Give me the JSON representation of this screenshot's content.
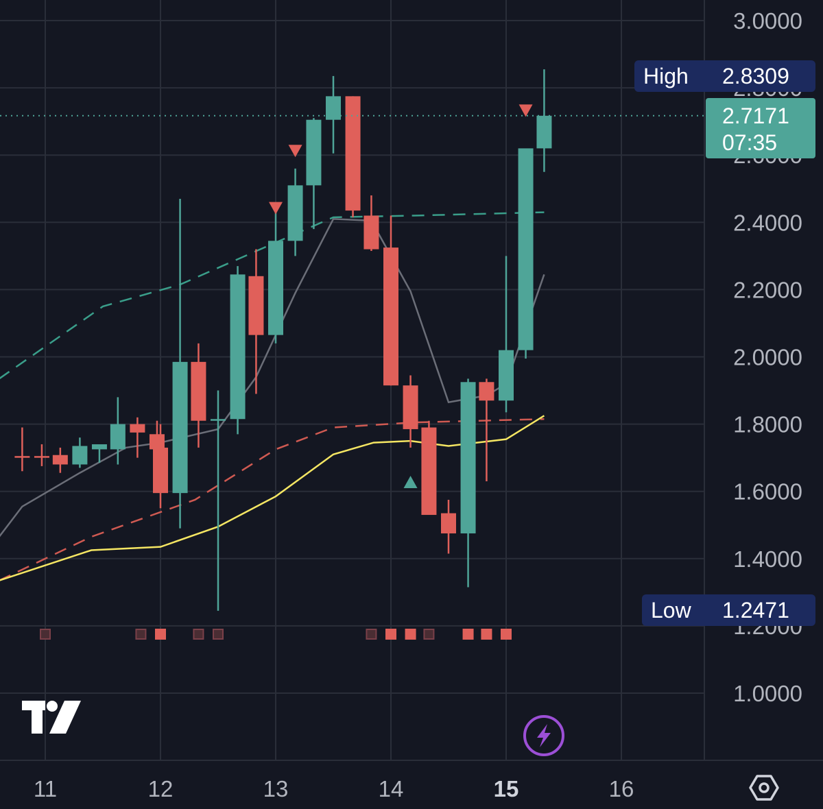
{
  "colors": {
    "background": "#141722",
    "grid": "#2a2e39",
    "up": "#4fa598",
    "down": "#e0605a",
    "sma_yellow": "#f5e663",
    "sma_gray": "#6b6e78",
    "upper_band": "#3a9e8a",
    "lower_band": "#d05a52",
    "tag_bg": "#1c2a5e",
    "price_tag_bg": "#4fa598",
    "lightning": "#9c4fd6"
  },
  "price_axis": {
    "ticks": [
      "3.0000",
      "2.4000",
      "2.2000",
      "2.0000",
      "1.8000",
      "1.6000",
      "1.4000",
      "1.0000"
    ],
    "tick_values": [
      3.0,
      2.4,
      2.2,
      2.0,
      1.8,
      1.6,
      1.4,
      1.0
    ],
    "partially_hidden_ticks": [
      "2.8000",
      "2.6000",
      "1.2000"
    ],
    "partially_hidden_values": [
      2.8,
      2.6,
      1.2
    ]
  },
  "time_axis": {
    "ticks": [
      "11",
      "12",
      "13",
      "14",
      "15",
      "16"
    ],
    "bold_tick": "15"
  },
  "high_tag": {
    "label": "High",
    "value": "2.8309",
    "price": 2.8309
  },
  "low_tag": {
    "label": "Low",
    "value": "1.2471",
    "price": 1.2471
  },
  "last_price_tag": {
    "value": "2.7171",
    "countdown": "07:35",
    "price": 2.7171
  },
  "logo": "tradingview-logo",
  "settings_icon": "hexagon-settings-icon",
  "lightning_icon": "lightning-icon",
  "chart_data": {
    "type": "candlestick",
    "x_labels": [
      "11",
      "12",
      "13",
      "14",
      "15",
      "16"
    ],
    "ylim": [
      0.8,
      3.05
    ],
    "yscale": "linear",
    "grid": true,
    "candles": [
      {
        "t": 10.8,
        "o": 1.705,
        "h": 1.79,
        "l": 1.66,
        "c": 1.7
      },
      {
        "t": 10.97,
        "o": 1.705,
        "h": 1.74,
        "l": 1.675,
        "c": 1.7
      },
      {
        "t": 11.13,
        "o": 1.708,
        "h": 1.73,
        "l": 1.655,
        "c": 1.68
      },
      {
        "t": 11.3,
        "o": 1.68,
        "h": 1.76,
        "l": 1.67,
        "c": 1.735
      },
      {
        "t": 11.47,
        "o": 1.725,
        "h": 1.73,
        "l": 1.685,
        "c": 1.74
      },
      {
        "t": 11.63,
        "o": 1.725,
        "h": 1.88,
        "l": 1.68,
        "c": 1.8
      },
      {
        "t": 11.8,
        "o": 1.8,
        "h": 1.82,
        "l": 1.7,
        "c": 1.775
      },
      {
        "t": 11.97,
        "o": 1.77,
        "h": 1.81,
        "l": 1.71,
        "c": 1.725
      },
      {
        "t": 12.0,
        "o": 1.73,
        "h": 1.8,
        "l": 1.55,
        "c": 1.595
      },
      {
        "t": 12.17,
        "o": 1.595,
        "h": 2.47,
        "l": 1.49,
        "c": 1.985
      },
      {
        "t": 12.33,
        "o": 1.985,
        "h": 2.04,
        "l": 1.73,
        "c": 1.81
      },
      {
        "t": 12.5,
        "o": 1.815,
        "h": 1.9,
        "l": 1.245,
        "c": 1.815
      },
      {
        "t": 12.67,
        "o": 1.815,
        "h": 2.27,
        "l": 1.77,
        "c": 2.245
      },
      {
        "t": 12.83,
        "o": 2.24,
        "h": 2.32,
        "l": 1.89,
        "c": 2.065
      },
      {
        "t": 13.0,
        "o": 2.065,
        "h": 2.43,
        "l": 2.04,
        "c": 2.345
      },
      {
        "t": 13.17,
        "o": 2.345,
        "h": 2.56,
        "l": 2.3,
        "c": 2.51
      },
      {
        "t": 13.33,
        "o": 2.51,
        "h": 2.71,
        "l": 2.38,
        "c": 2.705
      },
      {
        "t": 13.5,
        "o": 2.705,
        "h": 2.835,
        "l": 2.605,
        "c": 2.775
      },
      {
        "t": 13.67,
        "o": 2.775,
        "h": 2.775,
        "l": 2.415,
        "c": 2.435
      },
      {
        "t": 13.83,
        "o": 2.42,
        "h": 2.48,
        "l": 2.315,
        "c": 2.32
      },
      {
        "t": 14.0,
        "o": 2.325,
        "h": 2.42,
        "l": 1.915,
        "c": 1.915
      },
      {
        "t": 14.17,
        "o": 1.915,
        "h": 1.945,
        "l": 1.73,
        "c": 1.785
      },
      {
        "t": 14.33,
        "o": 1.79,
        "h": 1.81,
        "l": 1.535,
        "c": 1.53
      },
      {
        "t": 14.5,
        "o": 1.535,
        "h": 1.575,
        "l": 1.415,
        "c": 1.475
      },
      {
        "t": 14.67,
        "o": 1.475,
        "h": 1.935,
        "l": 1.315,
        "c": 1.925
      },
      {
        "t": 14.83,
        "o": 1.925,
        "h": 1.935,
        "l": 1.63,
        "c": 1.87
      },
      {
        "t": 15.0,
        "o": 1.87,
        "h": 2.3,
        "l": 1.835,
        "c": 2.02
      },
      {
        "t": 15.17,
        "o": 2.02,
        "h": 2.61,
        "l": 1.995,
        "c": 2.62
      },
      {
        "t": 15.33,
        "o": 2.62,
        "h": 2.855,
        "l": 2.55,
        "c": 2.717
      }
    ],
    "sma_yellow": [
      [
        10.6,
        1.335
      ],
      [
        11.4,
        1.425
      ],
      [
        12.0,
        1.435
      ],
      [
        12.5,
        1.495
      ],
      [
        13.0,
        1.585
      ],
      [
        13.5,
        1.71
      ],
      [
        13.85,
        1.745
      ],
      [
        14.17,
        1.75
      ],
      [
        14.5,
        1.735
      ],
      [
        15.0,
        1.755
      ],
      [
        15.33,
        1.825
      ]
    ],
    "sma_gray": [
      [
        10.6,
        1.465
      ],
      [
        10.8,
        1.555
      ],
      [
        11.3,
        1.655
      ],
      [
        11.7,
        1.73
      ],
      [
        12.0,
        1.745
      ],
      [
        12.5,
        1.785
      ],
      [
        12.83,
        1.94
      ],
      [
        13.17,
        2.19
      ],
      [
        13.5,
        2.41
      ],
      [
        13.83,
        2.405
      ],
      [
        14.17,
        2.195
      ],
      [
        14.5,
        1.865
      ],
      [
        14.83,
        1.885
      ],
      [
        15.0,
        1.92
      ],
      [
        15.33,
        2.245
      ]
    ],
    "upper_band": [
      [
        10.6,
        1.935
      ],
      [
        11.5,
        2.15
      ],
      [
        12.17,
        2.215
      ],
      [
        13.0,
        2.34
      ],
      [
        13.5,
        2.415
      ],
      [
        14.2,
        2.42
      ],
      [
        15.33,
        2.43
      ]
    ],
    "lower_band": [
      [
        10.6,
        1.335
      ],
      [
        11.4,
        1.465
      ],
      [
        12.3,
        1.575
      ],
      [
        13.0,
        1.725
      ],
      [
        13.5,
        1.79
      ],
      [
        14.2,
        1.805
      ],
      [
        15.33,
        1.815
      ]
    ],
    "sell_markers": [
      {
        "t": 13.0,
        "price": 2.44
      },
      {
        "t": 13.17,
        "price": 2.61
      },
      {
        "t": 15.17,
        "price": 2.73
      }
    ],
    "buy_markers": [
      {
        "t": 14.17,
        "price": 1.63
      }
    ],
    "signal_squares": [
      {
        "t": 11.0,
        "kind": "dim"
      },
      {
        "t": 11.83,
        "kind": "dim"
      },
      {
        "t": 12.0,
        "kind": "bright"
      },
      {
        "t": 12.33,
        "kind": "dim"
      },
      {
        "t": 12.5,
        "kind": "dim"
      },
      {
        "t": 13.83,
        "kind": "dim"
      },
      {
        "t": 14.0,
        "kind": "bright"
      },
      {
        "t": 14.17,
        "kind": "bright"
      },
      {
        "t": 14.33,
        "kind": "dim"
      },
      {
        "t": 14.67,
        "kind": "bright"
      },
      {
        "t": 14.83,
        "kind": "bright"
      },
      {
        "t": 15.0,
        "kind": "bright"
      }
    ]
  }
}
